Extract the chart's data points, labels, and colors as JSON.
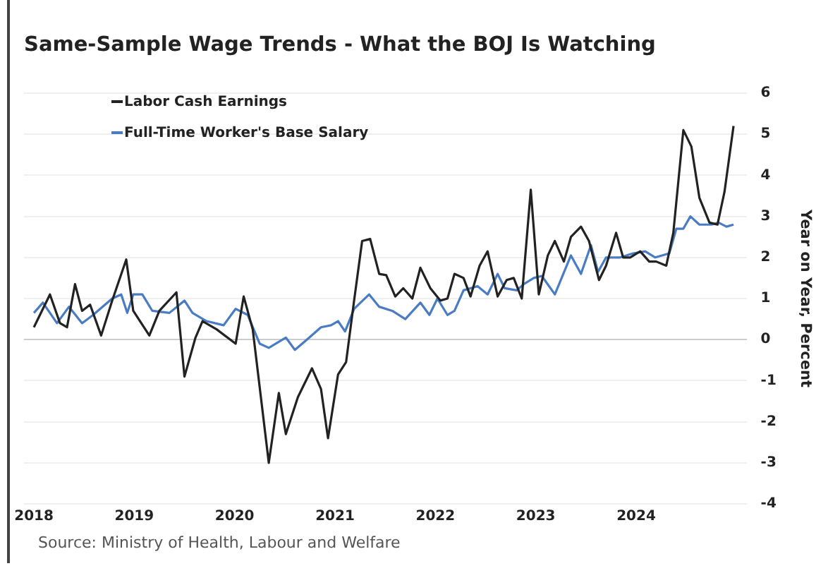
{
  "chart_data": {
    "type": "line",
    "title": "Same-Sample Wage Trends - What the BOJ Is Watching",
    "ylabel": "Year on Year, Percent",
    "annotations": [
      "Source: Ministry of Health, Labour and Welfare"
    ],
    "xlim": [
      2017.9,
      2025.1
    ],
    "xticks": [
      2018,
      2019,
      2020,
      2021,
      2022,
      2023,
      2024
    ],
    "ylim": [
      -4,
      6
    ],
    "yticks": [
      -4,
      -3,
      -2,
      -1,
      0,
      1,
      2,
      3,
      4,
      5,
      6
    ],
    "grid": "y",
    "legend": "top left",
    "marker": "none",
    "line_style": "solid",
    "series": [
      {
        "name": "Labor Cash Earnings",
        "color": "#222222",
        "x": [
          2018.0,
          2018.16,
          2018.26,
          2018.33,
          2018.41,
          2018.48,
          2018.56,
          2018.67,
          2018.78,
          2018.92,
          2018.99,
          2019.15,
          2019.25,
          2019.42,
          2019.5,
          2019.61,
          2019.68,
          2019.82,
          2020.01,
          2020.09,
          2020.18,
          2020.34,
          2020.44,
          2020.51,
          2020.63,
          2020.77,
          2020.86,
          2020.93,
          2021.03,
          2021.11,
          2021.19,
          2021.27,
          2021.35,
          2021.44,
          2021.51,
          2021.6,
          2021.68,
          2021.77,
          2021.85,
          2021.95,
          2022.05,
          2022.12,
          2022.19,
          2022.28,
          2022.35,
          2022.44,
          2022.52,
          2022.62,
          2022.71,
          2022.78,
          2022.86,
          2022.95,
          2023.03,
          2023.12,
          2023.19,
          2023.28,
          2023.35,
          2023.45,
          2023.53,
          2023.63,
          2023.7,
          2023.8,
          2023.87,
          2023.94,
          2024.04,
          2024.13,
          2024.2,
          2024.3,
          2024.37,
          2024.47,
          2024.55,
          2024.63,
          2024.73,
          2024.81,
          2024.88,
          2024.97
        ],
        "values": [
          0.3,
          1.1,
          0.4,
          0.3,
          1.35,
          0.7,
          0.85,
          0.1,
          0.95,
          1.95,
          0.7,
          0.1,
          0.7,
          1.15,
          -0.9,
          0.05,
          0.45,
          0.25,
          -0.1,
          1.05,
          0.25,
          -3.0,
          -1.3,
          -2.3,
          -1.4,
          -0.7,
          -1.2,
          -2.4,
          -0.85,
          -0.55,
          0.95,
          2.4,
          2.45,
          1.6,
          1.57,
          1.05,
          1.25,
          1.0,
          1.75,
          1.25,
          0.95,
          1.0,
          1.6,
          1.5,
          1.05,
          1.8,
          2.15,
          1.05,
          1.45,
          1.5,
          1.0,
          3.65,
          1.1,
          2.05,
          2.4,
          1.9,
          2.5,
          2.75,
          2.4,
          1.45,
          1.8,
          2.6,
          2.0,
          2.0,
          2.15,
          1.9,
          1.9,
          1.8,
          2.6,
          5.1,
          4.7,
          3.45,
          2.85,
          2.8,
          3.6,
          5.2
        ]
      },
      {
        "name": "Full-Time Worker's Base Salary",
        "color": "#4a7cc4",
        "x": [
          2018.0,
          2018.09,
          2018.23,
          2018.35,
          2018.48,
          2018.59,
          2018.78,
          2018.87,
          2018.93,
          2018.99,
          2019.08,
          2019.18,
          2019.35,
          2019.5,
          2019.58,
          2019.72,
          2019.89,
          2020.01,
          2020.13,
          2020.25,
          2020.34,
          2020.51,
          2020.6,
          2020.72,
          2020.86,
          2020.96,
          2021.03,
          2021.1,
          2021.19,
          2021.34,
          2021.44,
          2021.57,
          2021.7,
          2021.85,
          2021.94,
          2022.02,
          2022.12,
          2022.19,
          2022.28,
          2022.42,
          2022.52,
          2022.62,
          2022.69,
          2022.81,
          2022.88,
          2022.98,
          2023.06,
          2023.19,
          2023.35,
          2023.45,
          2023.55,
          2023.62,
          2023.7,
          2023.84,
          2023.97,
          2024.09,
          2024.19,
          2024.33,
          2024.4,
          2024.47,
          2024.54,
          2024.63,
          2024.75,
          2024.82,
          2024.9,
          2024.97
        ],
        "values": [
          0.65,
          0.9,
          0.4,
          0.8,
          0.4,
          0.6,
          1.0,
          1.1,
          0.65,
          1.1,
          1.1,
          0.7,
          0.65,
          0.95,
          0.65,
          0.45,
          0.35,
          0.75,
          0.6,
          -0.1,
          -0.2,
          0.05,
          -0.25,
          0.0,
          0.3,
          0.35,
          0.45,
          0.2,
          0.75,
          1.1,
          0.8,
          0.7,
          0.5,
          0.9,
          0.6,
          1.0,
          0.6,
          0.7,
          1.2,
          1.3,
          1.1,
          1.6,
          1.25,
          1.2,
          1.35,
          1.5,
          1.55,
          1.1,
          2.05,
          1.6,
          2.3,
          1.65,
          2.0,
          2.0,
          2.1,
          2.15,
          2.0,
          2.1,
          2.7,
          2.7,
          3.0,
          2.8,
          2.8,
          2.85,
          2.75,
          2.8
        ]
      }
    ]
  }
}
